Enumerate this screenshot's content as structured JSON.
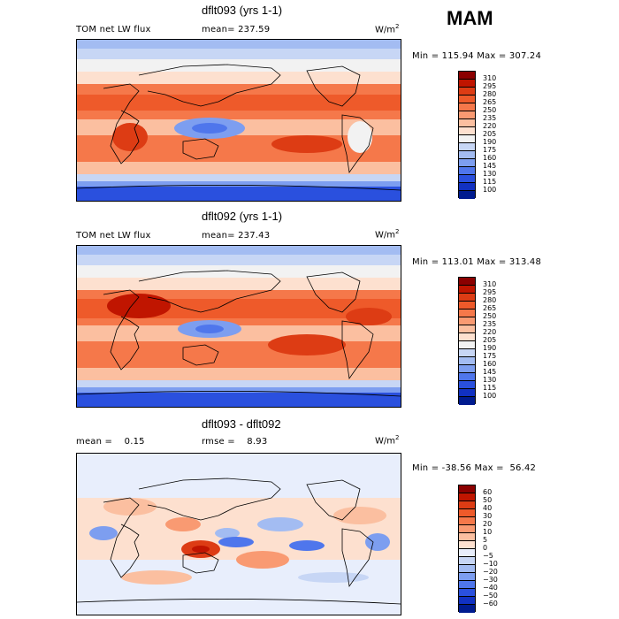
{
  "season": "MAM",
  "units": "W/m",
  "units_exp": "2",
  "panel1": {
    "title": "dflt093 (yrs 1-1)",
    "variable": "TOM net LW flux",
    "mean_text": "mean= 237.59",
    "minmax": "Min = 115.94 Max = 307.24"
  },
  "panel2": {
    "title": "dflt092 (yrs 1-1)",
    "variable": "TOM net LW flux",
    "mean_text": "mean= 237.43",
    "minmax": "Min = 113.01 Max = 313.48"
  },
  "panel3": {
    "title": "dflt093 - dflt092",
    "mean_text": "mean =    0.15",
    "rmse_text": "rmse =    8.93",
    "minmax": "Min = -38.56 Max =  56.42"
  },
  "colorbar_abs": {
    "ticks": [
      "310",
      "295",
      "280",
      "265",
      "250",
      "235",
      "220",
      "205",
      "190",
      "175",
      "160",
      "145",
      "130",
      "115",
      "100"
    ],
    "colors": [
      "#8b0000",
      "#c01500",
      "#dd3c14",
      "#ee5a2a",
      "#f5784a",
      "#f99a72",
      "#fbbfa0",
      "#fde0cf",
      "#f2f2f2",
      "#c7d6f5",
      "#a3bcf2",
      "#7d9ef0",
      "#4f76ec",
      "#2a50de",
      "#1131c2",
      "#001b8f"
    ]
  },
  "colorbar_diff": {
    "ticks": [
      "60",
      "50",
      "40",
      "30",
      "20",
      "10",
      "5",
      "0",
      "−5",
      "−10",
      "−20",
      "−30",
      "−40",
      "−50",
      "−60"
    ],
    "colors": [
      "#8b0000",
      "#c01500",
      "#dd3c14",
      "#ee5a2a",
      "#f5784a",
      "#f99a72",
      "#fbbfa0",
      "#fde0cf",
      "#e8eefc",
      "#c7d6f5",
      "#a3bcf2",
      "#7d9ef0",
      "#4f76ec",
      "#2a50de",
      "#1131c2",
      "#001b8f"
    ]
  }
}
